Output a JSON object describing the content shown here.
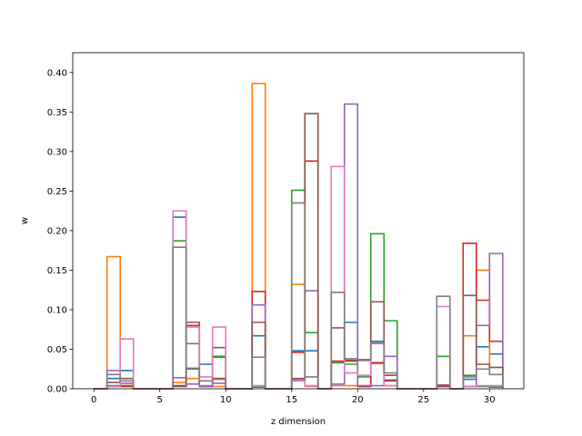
{
  "chart_data": {
    "type": "step-histogram",
    "xlabel": "z dimension",
    "ylabel": "w",
    "xlim": [
      -1.6,
      32.6
    ],
    "ylim": [
      0,
      0.425
    ],
    "x_ticks": [
      0,
      5,
      10,
      15,
      20,
      25,
      30
    ],
    "y_ticks": [
      0.0,
      0.05,
      0.1,
      0.15,
      0.2,
      0.25,
      0.3,
      0.35,
      0.4
    ],
    "y_tick_labels": [
      "0.00",
      "0.05",
      "0.10",
      "0.15",
      "0.20",
      "0.25",
      "0.30",
      "0.35",
      "0.40"
    ],
    "bins": [
      0,
      1,
      2,
      3,
      4,
      5,
      6,
      7,
      8,
      9,
      10,
      11,
      12,
      13,
      14,
      15,
      16,
      17,
      18,
      19,
      20,
      21,
      22,
      23,
      24,
      25,
      26,
      27,
      28,
      29,
      30,
      31
    ],
    "series": [
      {
        "color": "#1f77b4",
        "values": [
          0,
          0.013,
          0.023,
          0,
          0,
          0,
          0.217,
          0.025,
          0.031,
          0.04,
          0,
          0,
          0.067,
          0,
          0,
          0.048,
          0.048,
          0,
          0.033,
          0.084,
          0.037,
          0.06,
          0.011,
          0,
          0,
          0,
          0.004,
          0,
          0.012,
          0.053,
          0.044
        ]
      },
      {
        "color": "#ff7f0e",
        "values": [
          0,
          0.167,
          0.004,
          0,
          0,
          0,
          0.008,
          0.013,
          0.004,
          0.003,
          0,
          0,
          0.386,
          0,
          0,
          0.132,
          0.004,
          0,
          0.004,
          0.004,
          0.003,
          0.032,
          0.004,
          0,
          0,
          0,
          0.003,
          0,
          0.067,
          0.15,
          0.027
        ]
      },
      {
        "color": "#2ca02c",
        "values": [
          0,
          0.004,
          0.004,
          0,
          0,
          0,
          0.187,
          0.057,
          0.003,
          0.041,
          0,
          0,
          0.002,
          0,
          0,
          0.251,
          0.071,
          0,
          0.033,
          0.031,
          0.015,
          0.196,
          0.086,
          0,
          0,
          0,
          0.041,
          0,
          0.017,
          0.003,
          0.002
        ]
      },
      {
        "color": "#d62728",
        "values": [
          0,
          0.003,
          0.003,
          0,
          0,
          0,
          0.004,
          0.08,
          0.003,
          0.013,
          0,
          0,
          0.123,
          0,
          0,
          0.046,
          0.288,
          0,
          0.035,
          0.035,
          0.003,
          0.033,
          0.01,
          0,
          0,
          0,
          0.003,
          0,
          0.184,
          0.112,
          0.06
        ]
      },
      {
        "color": "#9467bd",
        "values": [
          0,
          0.023,
          0.007,
          0,
          0,
          0,
          0.014,
          0.006,
          0.003,
          0.007,
          0,
          0,
          0.106,
          0,
          0,
          0.011,
          0.124,
          0,
          0.006,
          0.36,
          0.004,
          0.004,
          0.041,
          0,
          0,
          0,
          0.005,
          0,
          0.003,
          0.08,
          0.171
        ]
      },
      {
        "color": "#8c564b",
        "values": [
          0,
          0.008,
          0.013,
          0,
          0,
          0,
          0.003,
          0.084,
          0.01,
          0.052,
          0,
          0,
          0.084,
          0,
          0,
          0.013,
          0.348,
          0,
          0.077,
          0.036,
          0.036,
          0.11,
          0.017,
          0,
          0,
          0,
          0.004,
          0,
          0.118,
          0.031,
          0.027
        ]
      },
      {
        "color": "#e377c2",
        "values": [
          0,
          0.003,
          0.063,
          0,
          0,
          0,
          0.225,
          0.078,
          0.015,
          0.078,
          0,
          0,
          0.004,
          0,
          0,
          0.01,
          0.003,
          0,
          0.281,
          0.02,
          0.017,
          0.057,
          0.004,
          0,
          0,
          0,
          0.104,
          0,
          0.003,
          0.004,
          0.004
        ]
      },
      {
        "color": "#7f7f7f",
        "values": [
          0,
          0.018,
          0.01,
          0,
          0,
          0,
          0.179,
          0.026,
          0.01,
          0.012,
          0,
          0,
          0.04,
          0,
          0,
          0.235,
          0.015,
          0,
          0.122,
          0.038,
          0.037,
          0.058,
          0.02,
          0,
          0,
          0,
          0.117,
          0,
          0.015,
          0.025,
          0.018
        ]
      }
    ]
  }
}
